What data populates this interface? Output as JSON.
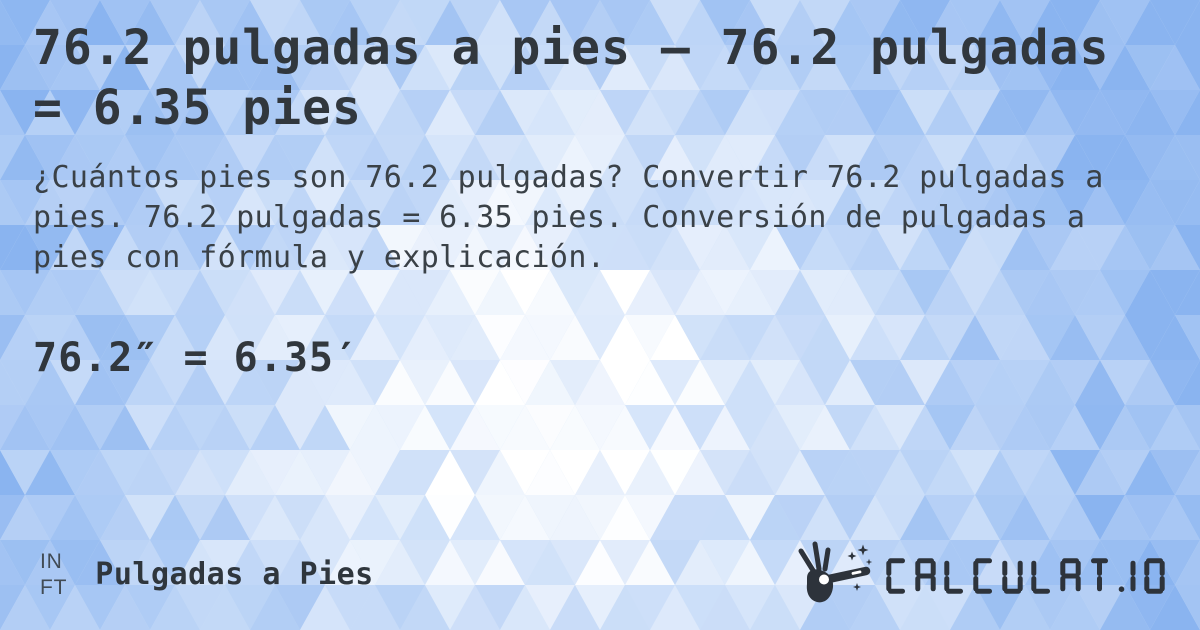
{
  "card": {
    "title": "76.2 pulgadas a pies — 76.2 pulgadas = 6.35 pies",
    "description": "¿Cuántos pies son 76.2 pulgadas? Convertir 76.2 pulgadas a pies. 76.2 pulgadas = 6.35 pies. Conversión de pulgadas a pies con fórmula y explicación.",
    "result": "76.2″ = 6.35′"
  },
  "footer": {
    "unit_from": "IN",
    "unit_to": "FT",
    "category_label": "Pulgadas a Pies"
  },
  "branding": {
    "logo_text": "CALCULAT.IO",
    "logo_icon": "magic-wand-hand-icon"
  },
  "colors": {
    "text": "#31373d",
    "logo": "#2d333b",
    "background_blue": "#8ab4f0",
    "background_white": "#ffffff"
  }
}
